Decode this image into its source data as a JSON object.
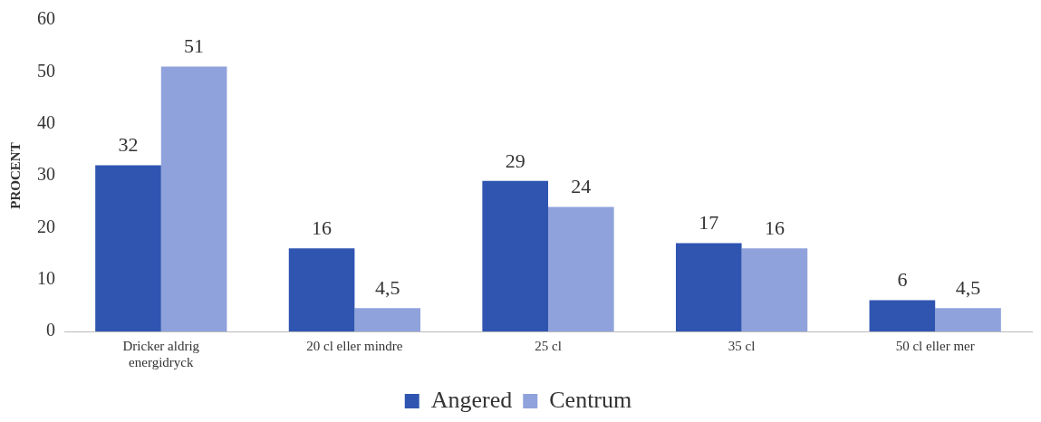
{
  "chart_data": {
    "type": "bar",
    "ylabel": "PROCENT",
    "categories": [
      "Dricker aldrig energidryck",
      "20 cl eller mindre",
      "25 cl",
      "35 cl",
      "50 cl eller mer"
    ],
    "series": [
      {
        "name": "Angered",
        "color": "#2f55b0",
        "values": [
          32,
          16,
          29,
          17,
          6
        ],
        "value_labels": [
          "32",
          "16",
          "29",
          "17",
          "6"
        ]
      },
      {
        "name": "Centrum",
        "color": "#8fa2dc",
        "values": [
          51,
          4.5,
          24,
          16,
          4.5
        ],
        "value_labels": [
          "51",
          "4,5",
          "24",
          "16",
          "4,5"
        ]
      }
    ],
    "ylim": [
      0,
      60
    ],
    "yticks": [
      0,
      10,
      20,
      30,
      40,
      50,
      60
    ],
    "grid": false,
    "legend": "bottom"
  }
}
